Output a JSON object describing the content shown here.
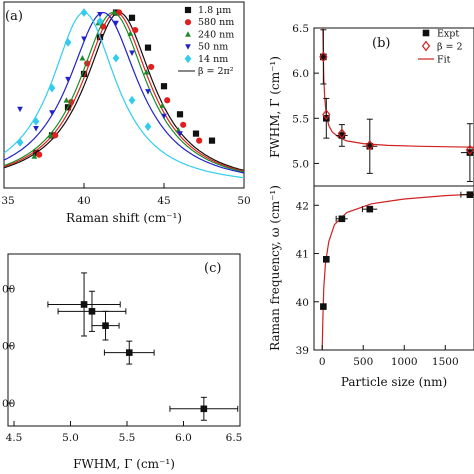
{
  "chart_data": [
    {
      "id": "a",
      "panel_label": "(a)",
      "type": "line",
      "xlabel": "Raman shift (cm⁻¹)",
      "ylabel": "",
      "xlim": [
        35,
        50
      ],
      "ylim": [
        0,
        1.06
      ],
      "x_ticks": [
        35,
        40,
        45,
        50
      ],
      "x_tick_labels": [
        "35",
        "40",
        "45",
        "50"
      ],
      "legend_position": "top-right",
      "series": [
        {
          "name": "1.8 µm",
          "color": "#111111",
          "marker": "square",
          "center": 42.2,
          "hwhm": 2.6,
          "x": [
            37.0,
            38.0,
            39.0,
            40.0,
            41.0,
            42.0,
            43.0,
            44.0,
            45.0,
            46.0,
            47.0,
            48.0
          ],
          "y": [
            0.2,
            0.3,
            0.46,
            0.65,
            0.86,
            1.0,
            0.97,
            0.8,
            0.58,
            0.42,
            0.31,
            0.27
          ]
        },
        {
          "name": "580 nm",
          "color": "#e02020",
          "marker": "circle",
          "center": 42.0,
          "hwhm": 2.6,
          "x": [
            37.2,
            38.2,
            39.2,
            40.2,
            41.2,
            42.2,
            43.2,
            44.2,
            45.2,
            46.2,
            47.2
          ],
          "y": [
            0.19,
            0.3,
            0.49,
            0.71,
            0.92,
            1.0,
            0.9,
            0.69,
            0.5,
            0.36,
            0.27
          ]
        },
        {
          "name": "240 nm",
          "color": "#1f8a2a",
          "marker": "triangle-up",
          "center": 41.8,
          "hwhm": 2.6,
          "x": [
            36.9,
            37.9,
            38.9,
            39.9,
            40.9,
            41.9,
            42.9,
            43.9,
            44.9,
            45.9
          ],
          "y": [
            0.18,
            0.3,
            0.5,
            0.74,
            0.94,
            1.0,
            0.88,
            0.66,
            0.47,
            0.33
          ]
        },
        {
          "name": "50 nm",
          "color": "#2222cc",
          "marker": "triangle-down",
          "center": 41.2,
          "hwhm": 2.7,
          "x": [
            36.0,
            37.0,
            38.0,
            39.0,
            40.0,
            41.0,
            42.0,
            43.0,
            44.0,
            45.0,
            46.0
          ],
          "y": [
            0.45,
            0.34,
            0.43,
            0.62,
            0.85,
            0.99,
            0.94,
            0.77,
            0.55,
            0.41,
            0.31
          ]
        },
        {
          "name": "14 nm",
          "color": "#33ccee",
          "marker": "diamond",
          "center": 40.0,
          "hwhm": 2.5,
          "x": [
            36.0,
            37.0,
            38.0,
            39.0,
            40.0,
            41.0,
            42.0,
            43.0,
            44.0
          ],
          "y": [
            0.26,
            0.38,
            0.57,
            0.83,
            1.0,
            0.95,
            0.74,
            0.5,
            0.35
          ]
        }
      ],
      "fit_legend": "β = 2π²"
    },
    {
      "id": "b-top",
      "panel_label": "(b)",
      "type": "scatter",
      "ylabel": "FWHM, Γ (cm⁻¹)",
      "xlim": [
        -100,
        1850
      ],
      "ylim": [
        4.75,
        6.5
      ],
      "y_ticks": [
        5.0,
        5.5,
        6.0,
        6.5
      ],
      "y_tick_labels": [
        "5.0",
        "5.5",
        "6.0",
        "6.5"
      ],
      "legend_position": "top-right",
      "legend": [
        "Expt",
        "β = 2",
        "Fit"
      ],
      "expt": {
        "x": [
          14,
          50,
          240,
          580,
          1800
        ],
        "y": [
          6.18,
          5.5,
          5.31,
          5.19,
          5.12
        ],
        "yerr": [
          0.3,
          0.22,
          0.12,
          0.3,
          0.32
        ],
        "xerr": [
          0,
          25,
          70,
          90,
          110
        ]
      },
      "model": {
        "x": [
          14,
          50,
          240,
          580,
          1800
        ],
        "y": [
          6.18,
          5.54,
          5.33,
          5.2,
          5.15
        ]
      },
      "fit": {
        "x": [
          8,
          12,
          20,
          30,
          50,
          80,
          120,
          200,
          300,
          500,
          800,
          1200,
          1850
        ],
        "y": [
          6.5,
          6.27,
          5.94,
          5.73,
          5.54,
          5.42,
          5.35,
          5.29,
          5.25,
          5.22,
          5.2,
          5.19,
          5.18
        ]
      },
      "colors": {
        "expt": "#111111",
        "model": "#d02020",
        "fit": "#d02020"
      }
    },
    {
      "id": "b-bottom",
      "type": "scatter",
      "xlabel": "Particle size (nm)",
      "ylabel": "Raman frequency, ω (cm⁻¹)",
      "xlim": [
        -100,
        1850
      ],
      "ylim": [
        39,
        42.4
      ],
      "x_ticks": [
        0,
        500,
        1000,
        1500
      ],
      "x_tick_labels": [
        "0",
        "500",
        "1000",
        "1500"
      ],
      "y_ticks": [
        39,
        40,
        41,
        42
      ],
      "y_tick_labels": [
        "39",
        "40",
        "41",
        "42"
      ],
      "expt": {
        "x": [
          14,
          50,
          240,
          580,
          1800
        ],
        "y": [
          39.9,
          40.88,
          41.72,
          41.92,
          42.22
        ],
        "xerr": [
          0,
          25,
          70,
          90,
          110
        ]
      },
      "fit": {
        "x": [
          0,
          5,
          10,
          20,
          40,
          80,
          150,
          300,
          600,
          1000,
          1500,
          1850
        ],
        "y": [
          39.0,
          39.4,
          39.75,
          40.3,
          40.8,
          41.25,
          41.6,
          41.85,
          42.03,
          42.13,
          42.2,
          42.23
        ]
      },
      "colors": {
        "expt": "#111111",
        "fit": "#d02020"
      }
    },
    {
      "id": "c",
      "panel_label": "(c)",
      "type": "scatter",
      "xlabel": "FWHM, Γ (cm⁻¹)",
      "xlim": [
        4.5,
        6.5
      ],
      "ylim": [
        39.6,
        42.6
      ],
      "x_ticks": [
        4.5,
        5.0,
        5.5,
        6.0,
        6.5
      ],
      "x_tick_labels": [
        "4.5",
        "5.0",
        "5.5",
        "6.0",
        "6.5"
      ],
      "y_ticks": [
        42.0,
        41.0,
        40.0
      ],
      "y_tick_labels": [
        "00",
        "00",
        "00"
      ],
      "points": {
        "x": [
          5.12,
          5.19,
          5.31,
          5.52,
          6.18
        ],
        "y": [
          41.72,
          41.6,
          41.35,
          40.88,
          39.9
        ],
        "xerr": [
          0.32,
          0.3,
          0.12,
          0.22,
          0.3
        ],
        "yerr": [
          0.55,
          0.35,
          0.25,
          0.2,
          0.2
        ]
      }
    }
  ]
}
